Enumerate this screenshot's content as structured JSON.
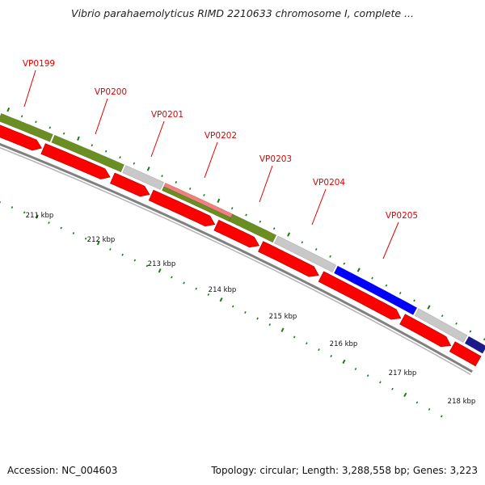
{
  "title": "Vibrio parahaemolyticus RIMD 2210633 chromosome I, complete ...",
  "footer": {
    "accession": "Accession: NC_004603",
    "summary": "Topology: circular; Length: 3,288,558 bp; Genes: 3,223"
  },
  "colors": {
    "forward_gene": "#6b8e23",
    "reverse_gene": "#ff0000",
    "other_gene": "#c8c8c8",
    "rna_gene": "#f08080",
    "blue_gene": "#0000ff",
    "navy_gene": "#1a1a8c",
    "backbone": "#808080",
    "tick": "#1a7a1a",
    "label": "#e00000"
  },
  "gene_labels": [
    {
      "id": "VP0199"
    },
    {
      "id": "VP0200"
    },
    {
      "id": "VP0201"
    },
    {
      "id": "VP0202"
    },
    {
      "id": "VP0203"
    },
    {
      "id": "VP0204"
    },
    {
      "id": "VP0205"
    }
  ],
  "scale_labels": [
    "211 kbp",
    "212 kbp",
    "213 kbp",
    "214 kbp",
    "215 kbp",
    "216 kbp",
    "217 kbp",
    "218 kbp"
  ]
}
